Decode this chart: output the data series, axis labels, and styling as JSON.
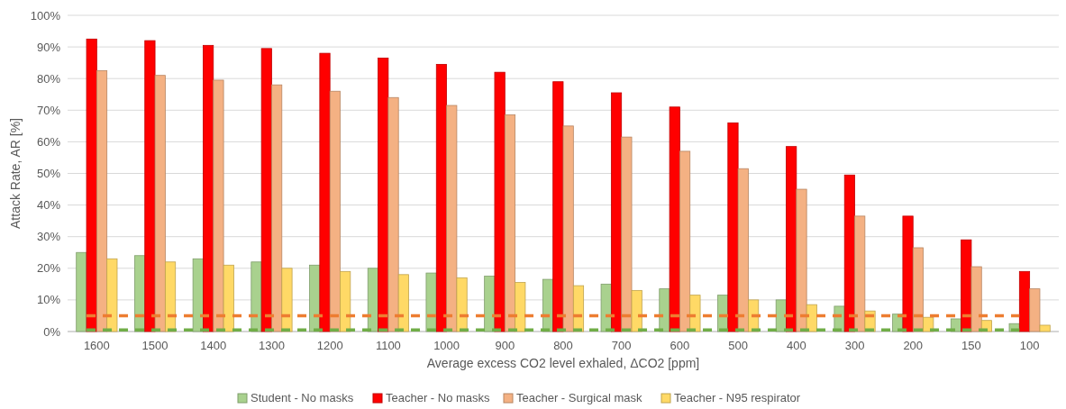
{
  "chart_data": {
    "type": "bar",
    "xlabel": "Average excess CO2 level exhaled, ΔCO2 [ppm]",
    "ylabel": "Attack Rate, AR [%]",
    "categories": [
      "1600",
      "1500",
      "1400",
      "1300",
      "1200",
      "1100",
      "1000",
      "900",
      "800",
      "700",
      "600",
      "500",
      "400",
      "300",
      "200",
      "150",
      "100"
    ],
    "series": [
      {
        "name": "Student - No masks",
        "color": "#a9d18e",
        "values": [
          25,
          24,
          23,
          22,
          21,
          20,
          18.5,
          17.5,
          16.5,
          15,
          13.5,
          11.5,
          10,
          8,
          5.5,
          4,
          2.5
        ]
      },
      {
        "name": "Teacher - No masks",
        "color": "#ff0000",
        "values": [
          92.5,
          92,
          90.5,
          89.5,
          88,
          86.5,
          84.5,
          82,
          79,
          75.5,
          71,
          66,
          58.5,
          49.5,
          36.5,
          29,
          19
        ]
      },
      {
        "name": "Teacher - Surgical mask",
        "color": "#f4b183",
        "values": [
          82.5,
          81,
          79.5,
          78,
          76,
          74,
          71.5,
          68.5,
          65,
          61.5,
          57,
          51.5,
          45,
          36.5,
          26.5,
          20.5,
          13.5
        ]
      },
      {
        "name": "Teacher - N95 respirator",
        "color": "#ffd966",
        "values": [
          23,
          22,
          21,
          20,
          19,
          18,
          17,
          15.5,
          14.5,
          13,
          11.5,
          10,
          8.5,
          6.5,
          4.5,
          3.5,
          2
        ]
      }
    ],
    "ylim": [
      0,
      100
    ],
    "yticks": [
      {
        "value": 0,
        "label": "0%"
      },
      {
        "value": 10,
        "label": "10%"
      },
      {
        "value": 20,
        "label": "20%"
      },
      {
        "value": 30,
        "label": "30%"
      },
      {
        "value": 40,
        "label": "40%"
      },
      {
        "value": 50,
        "label": "50%"
      },
      {
        "value": 60,
        "label": "60%"
      },
      {
        "value": 70,
        "label": "70%"
      },
      {
        "value": 80,
        "label": "80%"
      },
      {
        "value": 90,
        "label": "90%"
      },
      {
        "value": 100,
        "label": "100%"
      }
    ],
    "ref_lines": [
      {
        "axis": "y",
        "value": 5,
        "color": "#ed7d31",
        "line_style": "dashed"
      },
      {
        "axis": "y",
        "value": 0.5,
        "color": "#70ad47",
        "line_style": "dashed"
      }
    ],
    "grid": "y",
    "legend": "bottom"
  }
}
